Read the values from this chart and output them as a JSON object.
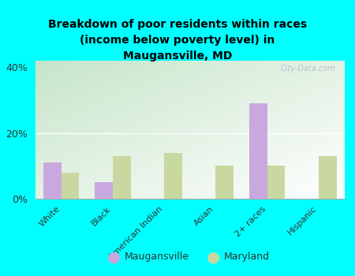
{
  "title": "Breakdown of poor residents within races\n(income below poverty level) in\nMaugansville, MD",
  "categories": [
    "White",
    "Black",
    "American Indian",
    "Asian",
    "2+ races",
    "Hispanic"
  ],
  "maugansville_values": [
    11,
    5,
    0,
    0,
    29,
    0
  ],
  "maryland_values": [
    8,
    13,
    14,
    10,
    10,
    13
  ],
  "maugansville_color": "#c9a8e0",
  "maryland_color": "#c8d8a0",
  "background_color": "#00ffff",
  "gradient_top_left": "#c8e6c9",
  "gradient_bottom_right": "#f5fff5",
  "ylim": [
    0,
    42
  ],
  "yticks": [
    0,
    20,
    40
  ],
  "ytick_labels": [
    "0%",
    "20%",
    "40%"
  ],
  "watermark": "City-Data.com",
  "legend_labels": [
    "Maugansville",
    "Maryland"
  ],
  "bar_width": 0.35
}
